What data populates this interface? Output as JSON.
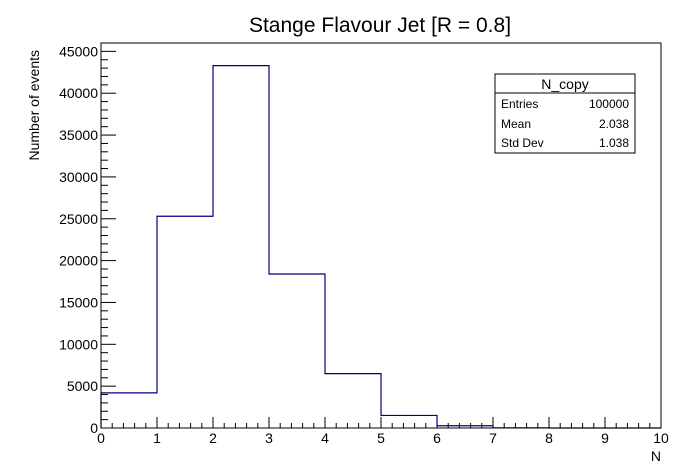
{
  "chart_data": {
    "type": "bar",
    "title": "Stange Flavour Jet [R = 0.8]",
    "xlabel": "N",
    "ylabel": "Number of events",
    "bin_edges": [
      0,
      1,
      2,
      3,
      4,
      5,
      6,
      7,
      8,
      9,
      10
    ],
    "values": [
      4200,
      25300,
      43300,
      18400,
      6500,
      1500,
      270,
      20,
      0,
      0
    ],
    "xlim": [
      0,
      10
    ],
    "ylim": [
      0,
      46000
    ],
    "x_ticks": [
      0,
      1,
      2,
      3,
      4,
      5,
      6,
      7,
      8,
      9,
      10
    ],
    "y_ticks": [
      0,
      5000,
      10000,
      15000,
      20000,
      25000,
      30000,
      35000,
      40000,
      45000
    ],
    "grid": false,
    "line_color": "#000080",
    "stats_box": {
      "name": "N_copy",
      "placement": "top-right",
      "rows": [
        {
          "label": "Entries",
          "value": "100000"
        },
        {
          "label": "Mean",
          "value": "2.038"
        },
        {
          "label": "Std Dev",
          "value": "1.038"
        }
      ]
    }
  }
}
